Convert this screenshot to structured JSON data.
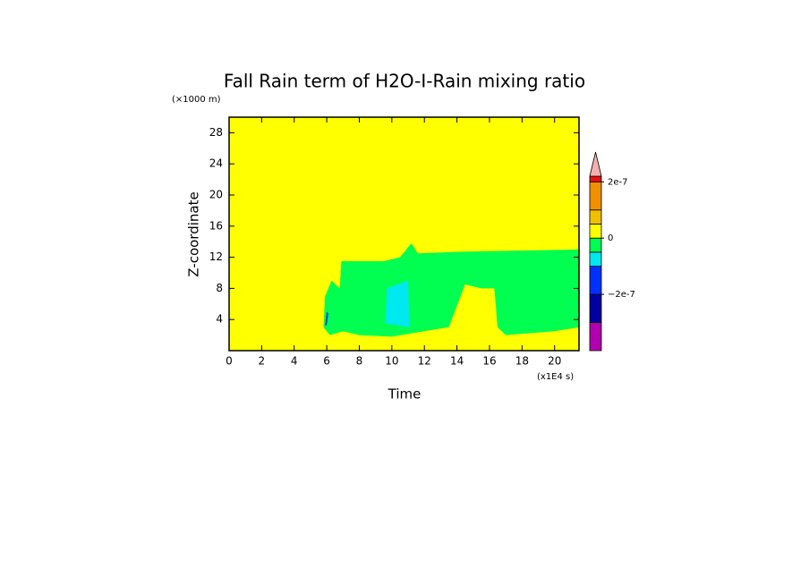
{
  "chart_data": {
    "type": "contour",
    "title": "Fall Rain term of H2O-I-Rain mixing ratio",
    "x_label": "Time",
    "y_label": "Z-coordinate",
    "x_unit": "(x1E4 s)",
    "y_unit": "(×1000 m)",
    "xlim": [
      0,
      21.5
    ],
    "ylim": [
      0,
      30
    ],
    "xticks": [
      0,
      2,
      4,
      6,
      8,
      10,
      12,
      14,
      16,
      18,
      20
    ],
    "yticks": [
      4,
      8,
      12,
      16,
      20,
      24,
      28
    ],
    "background_value": 2.5e-08,
    "regions": [
      {
        "value": -2.5e-08,
        "x": [
          5.8,
          5.9,
          6.3,
          6.8,
          6.9,
          9.5,
          10.5,
          11.2,
          11.6,
          14,
          21.5,
          21.5,
          20,
          17,
          16.5,
          16.3,
          15.5,
          14.5,
          13.5,
          12,
          10,
          8,
          7,
          6.2
        ],
        "y": [
          3,
          7,
          9,
          8,
          11.5,
          11.5,
          12,
          13.8,
          12.5,
          12.7,
          13,
          3,
          2.5,
          2,
          3,
          8,
          8,
          8.5,
          3,
          2.5,
          1.8,
          2,
          2.5,
          2
        ]
      },
      {
        "value": 2.5e-08,
        "x": [
          14.8,
          14.8,
          15.5,
          16,
          16
        ],
        "y": [
          3,
          5.5,
          6.5,
          5.5,
          3
        ]
      },
      {
        "value": -7.5e-08,
        "x": [
          9.6,
          9.7,
          11.0,
          11.1
        ],
        "y": [
          3.5,
          8,
          9,
          3
        ]
      },
      {
        "value": -1.5e-07,
        "x": [
          5.9,
          6.0,
          6.1,
          6.0
        ],
        "y": [
          3.2,
          5,
          4.8,
          3.3
        ]
      }
    ],
    "colorbar": {
      "bounds": [
        -4e-07,
        -3e-07,
        -2e-07,
        -1e-07,
        -5e-08,
        0,
        5e-08,
        1e-07,
        2e-07,
        2.2e-07
      ],
      "colors": [
        "#b000b0",
        "#0000a0",
        "#0030ff",
        "#00e8f0",
        "#00ff50",
        "#ffff00",
        "#f0c000",
        "#f09000",
        "#e81010"
      ],
      "extend_color": "#f4b0b0",
      "ticks": [
        {
          "value": 2e-07,
          "label": "2e-7"
        },
        0,
        {
          "value": -2e-07,
          "label": "−2e-7"
        }
      ]
    }
  }
}
